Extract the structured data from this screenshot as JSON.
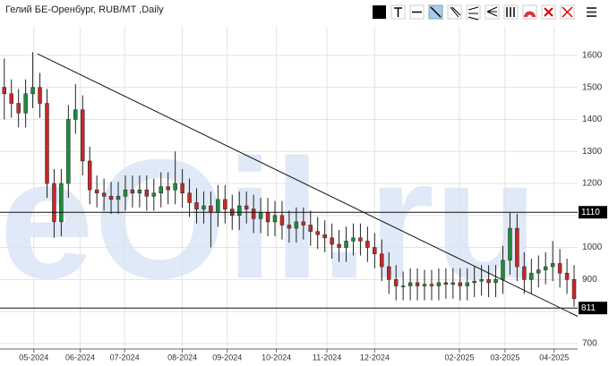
{
  "chart_data": {
    "type": "candlestick",
    "title": "Гелий БЕ-Оренбург, RUB/MT ,Daily",
    "watermark": "eOil.ru",
    "up_color": "#1e8c3a",
    "down_color": "#c62828",
    "wick_color": "#222222",
    "grid": true,
    "xlim": [
      -0.6,
      80.5
    ],
    "xticks": [
      {
        "value": 4.15,
        "label": "05-2024"
      },
      {
        "value": 10.65,
        "label": "06-2024"
      },
      {
        "value": 16.9,
        "label": "07-2024"
      },
      {
        "value": 25,
        "label": "08-2024"
      },
      {
        "value": 31.3,
        "label": "09-2024"
      },
      {
        "value": 38.2,
        "label": "10-2024"
      },
      {
        "value": 45.3,
        "label": "11-2024"
      },
      {
        "value": 52,
        "label": "12-2024"
      },
      {
        "value": 63.9,
        "label": "02-2025"
      },
      {
        "value": 70.3,
        "label": "03-2025"
      },
      {
        "value": 77.2,
        "label": "04-2025"
      }
    ],
    "ylim": [
      683,
      1689
    ],
    "yticks": [
      700,
      800,
      900,
      1000,
      1100,
      1200,
      1300,
      1400,
      1500,
      1600
    ],
    "levels": [
      {
        "value": 1110,
        "label": "1110"
      },
      {
        "value": 811,
        "label": "811"
      }
    ],
    "trendline": {
      "x": [
        4.65,
        80.5
      ],
      "y": [
        1605,
        785
      ]
    },
    "open": [
      1500,
      1480,
      1450,
      1420,
      1480,
      1500,
      1450,
      1200,
      1080,
      1200,
      1400,
      1430,
      1270,
      1180,
      1170,
      1160,
      1150,
      1160,
      1180,
      1170,
      1180,
      1160,
      1170,
      1190,
      1180,
      1200,
      1170,
      1140,
      1120,
      1130,
      1110,
      1150,
      1120,
      1100,
      1130,
      1120,
      1090,
      1110,
      1080,
      1100,
      1070,
      1060,
      1080,
      1070,
      1050,
      1040,
      1030,
      1010,
      1000,
      1020,
      1030,
      1020,
      1000,
      980,
      940,
      900,
      880,
      880,
      890,
      880,
      885,
      880,
      890,
      885,
      890,
      880,
      890,
      895,
      900,
      890,
      900,
      960,
      1060,
      940,
      900,
      920,
      930,
      940,
      950,
      920,
      900
    ],
    "high": [
      1590,
      1525,
      1495,
      1525,
      1610,
      1545,
      1495,
      1245,
      1245,
      1445,
      1510,
      1475,
      1315,
      1225,
      1215,
      1205,
      1205,
      1225,
      1225,
      1225,
      1225,
      1215,
      1235,
      1235,
      1300,
      1245,
      1215,
      1185,
      1175,
      1175,
      1195,
      1195,
      1165,
      1175,
      1175,
      1165,
      1155,
      1155,
      1145,
      1145,
      1115,
      1125,
      1125,
      1115,
      1095,
      1085,
      1075,
      1055,
      1065,
      1075,
      1075,
      1065,
      1045,
      1025,
      985,
      945,
      925,
      935,
      935,
      930,
      930,
      935,
      935,
      935,
      935,
      935,
      940,
      945,
      945,
      945,
      1005,
      1110,
      1105,
      985,
      965,
      975,
      985,
      1020,
      995,
      965,
      945
    ],
    "low": [
      1400,
      1405,
      1375,
      1375,
      1435,
      1405,
      1155,
      1030,
      1035,
      1155,
      1355,
      1225,
      1135,
      1125,
      1115,
      1105,
      1105,
      1115,
      1125,
      1125,
      1115,
      1115,
      1125,
      1135,
      1135,
      1125,
      1095,
      1075,
      1075,
      1000,
      1065,
      1075,
      1055,
      1055,
      1075,
      1045,
      1045,
      1035,
      1035,
      1025,
      1015,
      1015,
      1025,
      1005,
      995,
      985,
      965,
      955,
      955,
      975,
      975,
      955,
      935,
      895,
      855,
      835,
      835,
      835,
      835,
      835,
      835,
      835,
      840,
      840,
      835,
      835,
      845,
      850,
      845,
      845,
      855,
      915,
      895,
      855,
      855,
      875,
      885,
      895,
      875,
      855,
      815
    ],
    "close": [
      1480,
      1450,
      1420,
      1480,
      1500,
      1450,
      1200,
      1080,
      1200,
      1400,
      1430,
      1270,
      1180,
      1170,
      1160,
      1150,
      1160,
      1180,
      1170,
      1180,
      1160,
      1170,
      1190,
      1180,
      1200,
      1170,
      1140,
      1120,
      1130,
      1110,
      1150,
      1120,
      1100,
      1130,
      1120,
      1090,
      1110,
      1080,
      1100,
      1070,
      1060,
      1080,
      1070,
      1050,
      1040,
      1030,
      1010,
      1000,
      1020,
      1030,
      1020,
      1000,
      980,
      940,
      900,
      880,
      880,
      890,
      880,
      885,
      880,
      890,
      885,
      890,
      880,
      890,
      895,
      900,
      890,
      900,
      960,
      1060,
      940,
      900,
      920,
      930,
      940,
      950,
      920,
      900,
      840
    ]
  }
}
